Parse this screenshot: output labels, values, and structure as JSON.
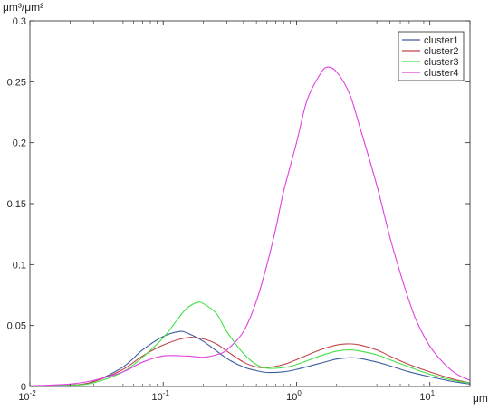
{
  "chart_data": {
    "type": "line",
    "xscale": "log",
    "xlim": [
      0.01,
      20
    ],
    "ylim": [
      0,
      0.3
    ],
    "ylabel": "μm³/μm²",
    "xlabel": "μm",
    "xticks": [
      {
        "value": 0.01,
        "base": "10",
        "exp": "-2"
      },
      {
        "value": 0.1,
        "base": "10",
        "exp": "-1"
      },
      {
        "value": 1,
        "base": "10",
        "exp": "0"
      },
      {
        "value": 10,
        "base": "10",
        "exp": "1"
      }
    ],
    "yticks": [
      {
        "value": 0,
        "label": "0"
      },
      {
        "value": 0.05,
        "label": "0.05"
      },
      {
        "value": 0.1,
        "label": "0.1"
      },
      {
        "value": 0.15,
        "label": "0.15"
      },
      {
        "value": 0.2,
        "label": "0.2"
      },
      {
        "value": 0.25,
        "label": "0.25"
      },
      {
        "value": 0.3,
        "label": "0.3"
      }
    ],
    "grid": false,
    "legend_position": "top-right",
    "series": [
      {
        "name": "cluster1",
        "color": "#3d5f9e",
        "points": [
          [
            0.01,
            0.0003
          ],
          [
            0.02,
            0.001
          ],
          [
            0.03,
            0.004
          ],
          [
            0.05,
            0.016
          ],
          [
            0.07,
            0.03
          ],
          [
            0.1,
            0.041
          ],
          [
            0.13,
            0.045
          ],
          [
            0.15,
            0.044
          ],
          [
            0.2,
            0.037
          ],
          [
            0.3,
            0.023
          ],
          [
            0.4,
            0.016
          ],
          [
            0.5,
            0.013
          ],
          [
            0.6,
            0.0115
          ],
          [
            0.8,
            0.012
          ],
          [
            1,
            0.014
          ],
          [
            1.5,
            0.019
          ],
          [
            2,
            0.0225
          ],
          [
            2.5,
            0.0235
          ],
          [
            3,
            0.023
          ],
          [
            4,
            0.02
          ],
          [
            5,
            0.017
          ],
          [
            7,
            0.012
          ],
          [
            10,
            0.008
          ],
          [
            15,
            0.004
          ],
          [
            20,
            0.002
          ]
        ]
      },
      {
        "name": "cluster2",
        "color": "#c0454a",
        "points": [
          [
            0.01,
            0.0003
          ],
          [
            0.02,
            0.001
          ],
          [
            0.03,
            0.004
          ],
          [
            0.05,
            0.014
          ],
          [
            0.07,
            0.025
          ],
          [
            0.1,
            0.034
          ],
          [
            0.15,
            0.04
          ],
          [
            0.2,
            0.039
          ],
          [
            0.25,
            0.035
          ],
          [
            0.3,
            0.029
          ],
          [
            0.4,
            0.02
          ],
          [
            0.5,
            0.016
          ],
          [
            0.6,
            0.0155
          ],
          [
            0.8,
            0.018
          ],
          [
            1,
            0.022
          ],
          [
            1.5,
            0.03
          ],
          [
            2,
            0.034
          ],
          [
            2.5,
            0.035
          ],
          [
            3,
            0.034
          ],
          [
            4,
            0.03
          ],
          [
            5,
            0.025
          ],
          [
            7,
            0.018
          ],
          [
            10,
            0.012
          ],
          [
            15,
            0.006
          ],
          [
            20,
            0.003
          ]
        ]
      },
      {
        "name": "cluster3",
        "color": "#44e044",
        "points": [
          [
            0.01,
            0.0003
          ],
          [
            0.02,
            0.001
          ],
          [
            0.03,
            0.003
          ],
          [
            0.05,
            0.012
          ],
          [
            0.07,
            0.024
          ],
          [
            0.1,
            0.04
          ],
          [
            0.13,
            0.056
          ],
          [
            0.15,
            0.064
          ],
          [
            0.18,
            0.069
          ],
          [
            0.2,
            0.068
          ],
          [
            0.25,
            0.06
          ],
          [
            0.3,
            0.045
          ],
          [
            0.4,
            0.027
          ],
          [
            0.5,
            0.018
          ],
          [
            0.6,
            0.015
          ],
          [
            0.8,
            0.0155
          ],
          [
            1,
            0.018
          ],
          [
            1.5,
            0.025
          ],
          [
            2,
            0.029
          ],
          [
            2.5,
            0.03
          ],
          [
            3,
            0.029
          ],
          [
            4,
            0.026
          ],
          [
            5,
            0.022
          ],
          [
            7,
            0.016
          ],
          [
            10,
            0.01
          ],
          [
            15,
            0.005
          ],
          [
            20,
            0.003
          ]
        ]
      },
      {
        "name": "cluster4",
        "color": "#e040e0",
        "points": [
          [
            0.01,
            0.0005
          ],
          [
            0.02,
            0.002
          ],
          [
            0.03,
            0.005
          ],
          [
            0.05,
            0.012
          ],
          [
            0.07,
            0.02
          ],
          [
            0.1,
            0.025
          ],
          [
            0.15,
            0.025
          ],
          [
            0.2,
            0.024
          ],
          [
            0.25,
            0.026
          ],
          [
            0.3,
            0.03
          ],
          [
            0.4,
            0.045
          ],
          [
            0.5,
            0.07
          ],
          [
            0.6,
            0.1
          ],
          [
            0.7,
            0.13
          ],
          [
            0.8,
            0.16
          ],
          [
            1,
            0.2
          ],
          [
            1.2,
            0.235
          ],
          [
            1.5,
            0.256
          ],
          [
            1.7,
            0.262
          ],
          [
            2,
            0.258
          ],
          [
            2.5,
            0.24
          ],
          [
            3,
            0.212
          ],
          [
            4,
            0.165
          ],
          [
            5,
            0.123
          ],
          [
            6,
            0.093
          ],
          [
            7,
            0.07
          ],
          [
            8,
            0.053
          ],
          [
            10,
            0.033
          ],
          [
            13,
            0.018
          ],
          [
            16,
            0.01
          ],
          [
            20,
            0.005
          ]
        ]
      }
    ]
  }
}
